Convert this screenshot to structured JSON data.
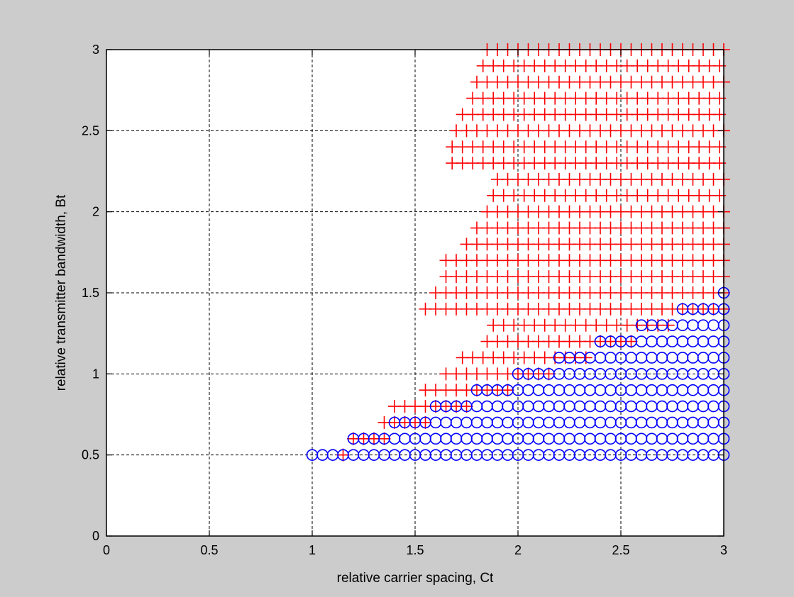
{
  "chart_data": {
    "type": "scatter",
    "title": "",
    "xlabel": "relative carrier spacing, Ct",
    "ylabel": "relative transmitter bandwidth, Bt",
    "xlim": [
      0,
      3
    ],
    "ylim": [
      0,
      3
    ],
    "xticks": [
      0,
      0.5,
      1,
      1.5,
      2,
      2.5,
      3
    ],
    "xtick_labels": [
      "0",
      "0.5",
      "1",
      "1.5",
      "2",
      "2.5",
      "3"
    ],
    "yticks": [
      0,
      0.5,
      1,
      1.5,
      2,
      2.5,
      3
    ],
    "ytick_labels": [
      "0",
      "0.5",
      "1",
      "1.5",
      "2",
      "2.5",
      "3"
    ],
    "grid": "dashed",
    "background": "#cccccc",
    "plot_background": "#ffffff",
    "x_step": 0.05,
    "series": [
      {
        "marker": "plus",
        "color": "#ff0000",
        "description": "rows: [Bt, Ct_start, Ct_end] with points every 0.05",
        "rows": [
          [
            3.0,
            1.85,
            3.0
          ],
          [
            2.9,
            1.83,
            3.0
          ],
          [
            2.8,
            1.8,
            3.0
          ],
          [
            2.7,
            1.78,
            3.0
          ],
          [
            2.6,
            1.73,
            3.0
          ],
          [
            2.5,
            1.7,
            3.0
          ],
          [
            2.4,
            1.68,
            3.0
          ],
          [
            2.3,
            1.68,
            3.0
          ],
          [
            2.2,
            1.9,
            3.0
          ],
          [
            2.1,
            1.88,
            3.0
          ],
          [
            2.0,
            1.85,
            3.0
          ],
          [
            1.9,
            1.8,
            3.0
          ],
          [
            1.8,
            1.75,
            3.0
          ],
          [
            1.7,
            1.65,
            3.0
          ],
          [
            1.6,
            1.65,
            3.0
          ],
          [
            1.5,
            1.6,
            3.0
          ],
          [
            1.4,
            1.55,
            3.0
          ],
          [
            1.3,
            1.88,
            2.75
          ],
          [
            1.2,
            1.85,
            2.55
          ],
          [
            1.1,
            1.73,
            2.35
          ],
          [
            1.0,
            1.65,
            2.15
          ],
          [
            0.9,
            1.55,
            1.95
          ],
          [
            0.8,
            1.4,
            1.75
          ],
          [
            0.7,
            1.35,
            1.55
          ],
          [
            0.6,
            1.2,
            1.35
          ],
          [
            0.5,
            1.15,
            1.15
          ]
        ]
      },
      {
        "marker": "circle",
        "color": "#0000ff",
        "description": "rows: [Bt, Ct_start, Ct_end] with points every 0.05",
        "rows": [
          [
            1.5,
            3.0,
            3.0
          ],
          [
            1.4,
            2.8,
            3.0
          ],
          [
            1.3,
            2.6,
            3.0
          ],
          [
            1.2,
            2.4,
            3.0
          ],
          [
            1.1,
            2.2,
            3.0
          ],
          [
            1.0,
            2.0,
            3.0
          ],
          [
            0.9,
            1.8,
            3.0
          ],
          [
            0.8,
            1.6,
            3.0
          ],
          [
            0.7,
            1.4,
            3.0
          ],
          [
            0.6,
            1.2,
            3.0
          ],
          [
            0.5,
            1.0,
            3.0
          ]
        ]
      }
    ]
  }
}
